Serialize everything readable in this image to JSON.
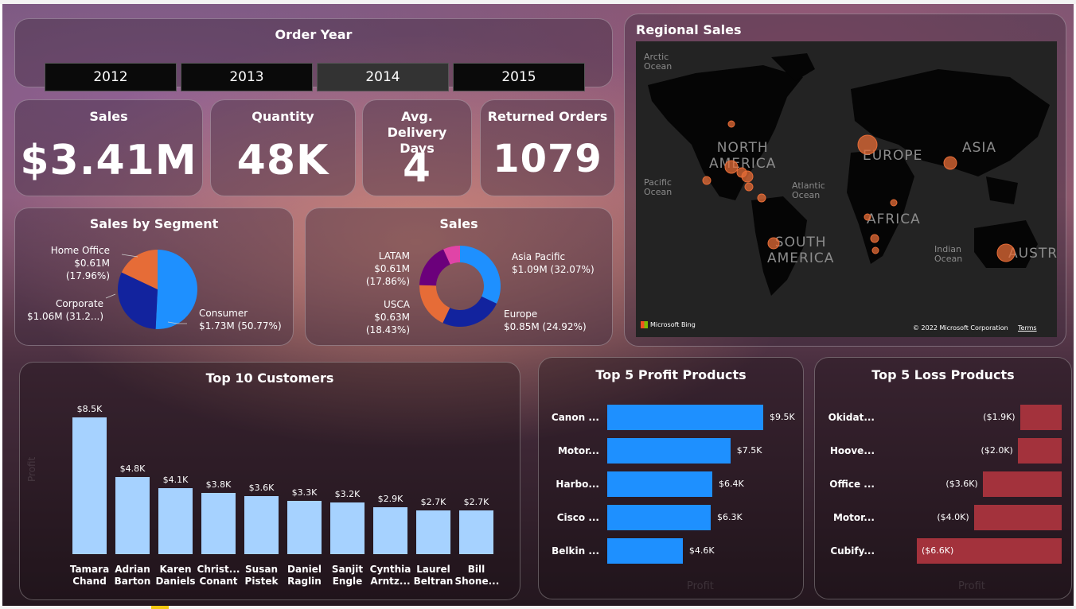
{
  "order_year": {
    "title": "Order Year",
    "years": [
      "2012",
      "2013",
      "2014",
      "2015"
    ],
    "selected": "2014"
  },
  "kpis": [
    {
      "label": "Sales",
      "value": "$3.41M"
    },
    {
      "label": "Quantity",
      "value": "48K"
    },
    {
      "label": "Avg. Delivery Days",
      "value": "4"
    },
    {
      "label": "Returned Orders",
      "value": "1079"
    }
  ],
  "segment": {
    "title": "Sales by Segment",
    "slices": [
      {
        "name": "Consumer",
        "label": "$1.73M (50.77%)",
        "pct": 50.77,
        "color": "#1e90ff"
      },
      {
        "name": "Corporate",
        "label": "$1.06M (31.2...)",
        "pct": 31.27,
        "color": "#12239e"
      },
      {
        "name": "Home Office",
        "label": "$0.61M (17.96%)",
        "pct": 17.96,
        "color": "#e66c37"
      }
    ]
  },
  "region_donut": {
    "title": "Sales",
    "slices": [
      {
        "name": "Asia Pacific",
        "label": "$1.09M (32.07%)",
        "pct": 32.07,
        "color": "#1e90ff"
      },
      {
        "name": "Europe",
        "label": "$0.85M (24.92%)",
        "pct": 24.92,
        "color": "#12239e"
      },
      {
        "name": "USCA",
        "label": "$0.63M (18.43%)",
        "pct": 18.43,
        "color": "#e66c37"
      },
      {
        "name": "LATAM",
        "label": "$0.61M (17.86%)",
        "pct": 17.86,
        "color": "#6b007b"
      },
      {
        "name": "",
        "label": "",
        "pct": 6.72,
        "color": "#e044a7"
      }
    ]
  },
  "regional_map": {
    "title": "Regional Sales",
    "labels": {
      "arctic": "Arctic\nOcean",
      "pacific": "Pacific\nOcean",
      "atlantic": "Atlantic\nOcean",
      "indian": "Indian\nOcean",
      "north_america": "NORTH\nAMERICA",
      "south_america": "SOUTH\nAMERICA",
      "europe": "EUROPE",
      "asia": "ASIA",
      "africa": "AFRICA",
      "australia": "AUSTRAL"
    },
    "logo": "Microsoft Bing",
    "copyright": "© 2022 Microsoft Corporation",
    "terms": "Terms"
  },
  "top_customers": {
    "title": "Top 10 Customers",
    "axis_title": "Profit",
    "customers": [
      {
        "name": "Tamara Chand",
        "value": 8.5,
        "label": "$8.5K"
      },
      {
        "name": "Adrian Barton",
        "value": 4.8,
        "label": "$4.8K"
      },
      {
        "name": "Karen Daniels",
        "value": 4.1,
        "label": "$4.1K"
      },
      {
        "name": "Christ... Conant",
        "value": 3.8,
        "label": "$3.8K"
      },
      {
        "name": "Susan Pistek",
        "value": 3.6,
        "label": "$3.6K"
      },
      {
        "name": "Daniel Raglin",
        "value": 3.3,
        "label": "$3.3K"
      },
      {
        "name": "Sanjit Engle",
        "value": 3.2,
        "label": "$3.2K"
      },
      {
        "name": "Cynthia Arntz...",
        "value": 2.9,
        "label": "$2.9K"
      },
      {
        "name": "Laurel Beltran",
        "value": 2.7,
        "label": "$2.7K"
      },
      {
        "name": "Bill Shone...",
        "value": 2.7,
        "label": "$2.7K"
      }
    ]
  },
  "profit_products": {
    "title": "Top 5 Profit Products",
    "axis_label": "Profit",
    "items": [
      {
        "name": "Canon ...",
        "value": 9.5,
        "label": "$9.5K"
      },
      {
        "name": "Motor...",
        "value": 7.5,
        "label": "$7.5K"
      },
      {
        "name": "Harbo...",
        "value": 6.4,
        "label": "$6.4K"
      },
      {
        "name": "Cisco ...",
        "value": 6.3,
        "label": "$6.3K"
      },
      {
        "name": "Belkin ...",
        "value": 4.6,
        "label": "$4.6K"
      }
    ]
  },
  "loss_products": {
    "title": "Top 5 Loss Products",
    "axis_label": "Profit",
    "items": [
      {
        "name": "Okidat...",
        "value": -1.9,
        "label": "($1.9K)"
      },
      {
        "name": "Hoove...",
        "value": -2.0,
        "label": "($2.0K)"
      },
      {
        "name": "Office ...",
        "value": -3.6,
        "label": "($3.6K)"
      },
      {
        "name": "Motor...",
        "value": -4.0,
        "label": "($4.0K)"
      },
      {
        "name": "Cubify...",
        "value": -6.6,
        "label": "($6.6K)"
      }
    ]
  },
  "colors": {
    "bar_customers": "#a6d2ff",
    "bar_profit": "#1e90ff",
    "bar_loss": "#a3323c",
    "map_bubble": "#e66c37"
  },
  "chart_data": [
    {
      "type": "pie",
      "title": "Sales by Segment",
      "categories": [
        "Consumer",
        "Corporate",
        "Home Office"
      ],
      "values": [
        1.73,
        1.06,
        0.61
      ],
      "unit": "$M"
    },
    {
      "type": "pie",
      "title": "Sales",
      "categories": [
        "Asia Pacific",
        "Europe",
        "USCA",
        "LATAM",
        ""
      ],
      "values": [
        1.09,
        0.85,
        0.63,
        0.61,
        0.23
      ],
      "unit": "$M"
    },
    {
      "type": "bar",
      "title": "Top 10 Customers",
      "categories": [
        "Tamara Chand",
        "Adrian Barton",
        "Karen Daniels",
        "Christ... Conant",
        "Susan Pistek",
        "Daniel Raglin",
        "Sanjit Engle",
        "Cynthia Arntz...",
        "Laurel Beltran",
        "Bill Shone..."
      ],
      "values": [
        8.5,
        4.8,
        4.1,
        3.8,
        3.6,
        3.3,
        3.2,
        2.9,
        2.7,
        2.7
      ],
      "ylabel": "Profit",
      "unit": "$K"
    },
    {
      "type": "bar",
      "title": "Top 5 Profit Products",
      "categories": [
        "Canon ...",
        "Motor...",
        "Harbo...",
        "Cisco ...",
        "Belkin ..."
      ],
      "values": [
        9.5,
        7.5,
        6.4,
        6.3,
        4.6
      ],
      "xlabel": "Profit",
      "unit": "$K"
    },
    {
      "type": "bar",
      "title": "Top 5 Loss Products",
      "categories": [
        "Okidat...",
        "Hoove...",
        "Office ...",
        "Motor...",
        "Cubify..."
      ],
      "values": [
        -1.9,
        -2.0,
        -3.6,
        -4.0,
        -6.6
      ],
      "xlabel": "Profit",
      "unit": "$K"
    }
  ]
}
